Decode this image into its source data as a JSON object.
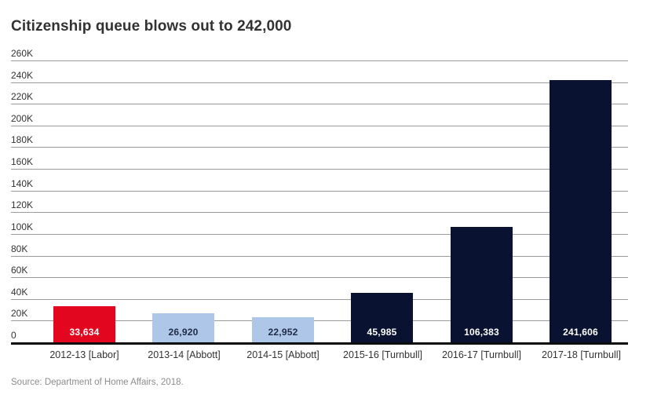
{
  "source_note": "Source: Department of Home Affairs, 2018.",
  "chart_data": {
    "type": "bar",
    "title": "Citizenship queue blows out to 242,000",
    "categories": [
      "2012-13 [Labor]",
      "2013-14 [Abbott]",
      "2014-15 [Abbott]",
      "2015-16 [Turnbull]",
      "2016-17 [Turnbull]",
      "2017-18 [Turnbull]"
    ],
    "values": [
      33634,
      26920,
      22952,
      45985,
      106383,
      241606
    ],
    "value_labels": [
      "33,634",
      "26,920",
      "22,952",
      "45,985",
      "106,383",
      "241,606"
    ],
    "bar_colors": [
      "#e2071e",
      "#aec7e8",
      "#aec7e8",
      "#0a1232",
      "#0a1232",
      "#0a1232"
    ],
    "value_label_colors": [
      "#ffffff",
      "#1f2a44",
      "#1f2a44",
      "#ffffff",
      "#ffffff",
      "#ffffff"
    ],
    "xlabel": "",
    "ylabel": "",
    "ylim": [
      0,
      260000
    ],
    "y_ticks": [
      {
        "label": "260K",
        "value": 260000
      },
      {
        "label": "240K",
        "value": 240000
      },
      {
        "label": "220K",
        "value": 220000
      },
      {
        "label": "200K",
        "value": 200000
      },
      {
        "label": "180K",
        "value": 180000
      },
      {
        "label": "160K",
        "value": 160000
      },
      {
        "label": "140K",
        "value": 140000
      },
      {
        "label": "120K",
        "value": 120000
      },
      {
        "label": "100K",
        "value": 100000
      },
      {
        "label": "80K",
        "value": 80000
      },
      {
        "label": "60K",
        "value": 60000
      },
      {
        "label": "40K",
        "value": 40000
      },
      {
        "label": "20K",
        "value": 20000
      },
      {
        "label": "0",
        "value": 0
      }
    ],
    "grid": "horizontal",
    "legend": "none",
    "colors": {
      "gridline": "#9b9b9b",
      "axis": "#0d0d0d",
      "tick_text": "#333333",
      "title_text": "#323232",
      "source_text": "#8c8c8c"
    }
  }
}
